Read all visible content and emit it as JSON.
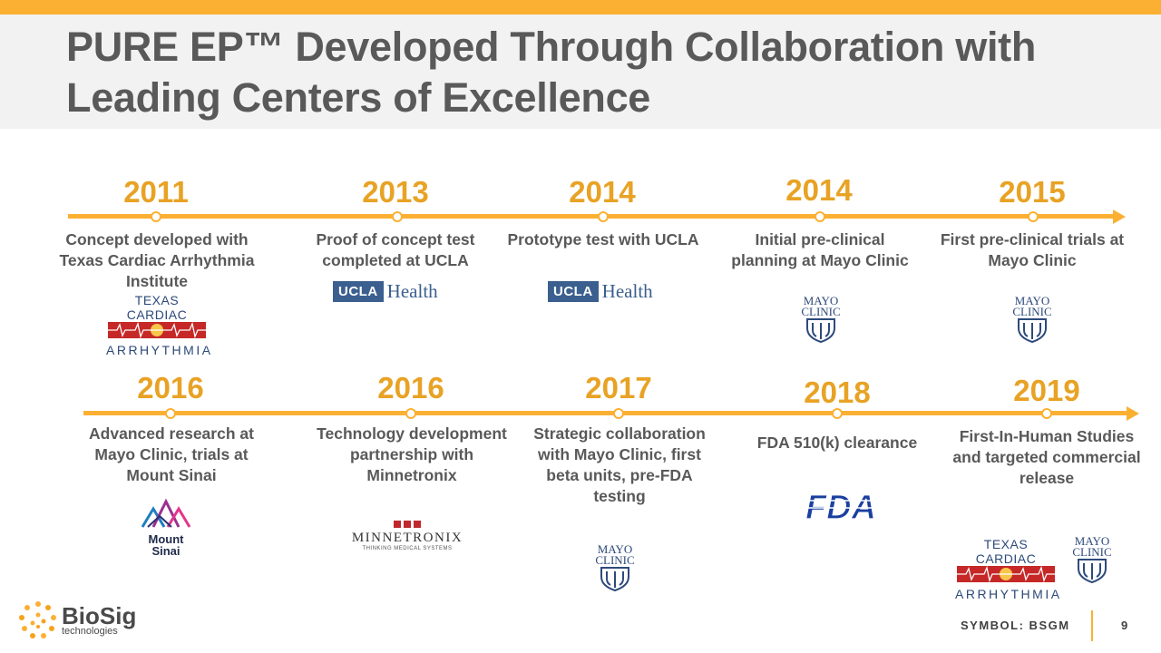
{
  "title": "PURE EP™ Developed Through Collaboration with Leading Centers of Excellence",
  "row1": [
    {
      "year": "2011",
      "desc": "Concept developed with Texas Cardiac Arrhythmia Institute"
    },
    {
      "year": "2013",
      "desc": "Proof of concept test completed at UCLA"
    },
    {
      "year": "2014",
      "desc": "Prototype test with UCLA"
    },
    {
      "year": "2014",
      "desc": "Initial pre-clinical planning at Mayo Clinic"
    },
    {
      "year": "2015",
      "desc": "First pre-clinical trials at Mayo Clinic"
    }
  ],
  "row2": [
    {
      "year": "2016",
      "desc": "Advanced research at Mayo Clinic, trials at Mount Sinai"
    },
    {
      "year": "2016",
      "desc": "Technology development partnership with Minnetronix"
    },
    {
      "year": "2017",
      "desc": "Strategic collaboration with Mayo Clinic, first beta units, pre-FDA testing"
    },
    {
      "year": "2018",
      "desc": "FDA 510(k) clearance"
    },
    {
      "year": "2019",
      "desc": "First-In-Human Studies and targeted commercial release"
    }
  ],
  "logos": {
    "tca_line1": "TEXAS CARDIAC",
    "tca_line2": "ARRHYTHMIA",
    "ucla_box": "UCLA",
    "ucla_word": "Health",
    "mayo_line1": "MAYO",
    "mayo_line2": "CLINIC",
    "mount_line1": "Mount",
    "mount_line2": "Sinai",
    "minne_name": "MINNETRONIX",
    "minne_tag": "THINKING MEDICAL SYSTEMS",
    "fda": "FDA"
  },
  "footer": {
    "brand": "BioSig",
    "brand_sub": "technologies",
    "symbol": "SYMBOL: BSGM",
    "page": "9"
  },
  "colors": {
    "accent": "#fbb033",
    "year": "#e8a224",
    "text": "#595959"
  }
}
